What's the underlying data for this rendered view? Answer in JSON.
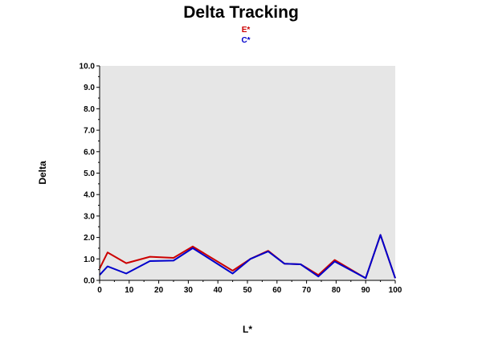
{
  "chart_data": {
    "type": "line",
    "title": "Delta Tracking",
    "xlabel": "L*",
    "ylabel": "Delta",
    "xlim": [
      0,
      100
    ],
    "ylim": [
      0,
      10
    ],
    "x_ticks": [
      "0",
      "10",
      "20",
      "30",
      "40",
      "50",
      "60",
      "70",
      "80",
      "90",
      "100"
    ],
    "y_ticks": [
      "0.0",
      "1.0",
      "2.0",
      "3.0",
      "4.0",
      "5.0",
      "6.0",
      "7.0",
      "8.0",
      "9.0",
      "10.0"
    ],
    "grid": false,
    "plot_background": "#e6e6e6",
    "legend_position": "top-center",
    "series": [
      {
        "name": "E*",
        "color": "#cc0000",
        "x": [
          0,
          2.7,
          9,
          17,
          25,
          31.5,
          45,
          51,
          57,
          62.5,
          68,
          74,
          79.5,
          90,
          95,
          100
        ],
        "y": [
          0.55,
          1.3,
          0.8,
          1.1,
          1.05,
          1.58,
          0.45,
          1.0,
          1.38,
          0.78,
          0.75,
          0.25,
          0.95,
          0.1,
          2.12,
          0.1
        ]
      },
      {
        "name": "C*",
        "color": "#0000cc",
        "x": [
          0,
          2.7,
          9,
          17,
          25,
          31.5,
          45,
          51,
          57,
          62.5,
          68,
          74,
          79.5,
          90,
          95,
          100
        ],
        "y": [
          0.25,
          0.65,
          0.32,
          0.9,
          0.92,
          1.5,
          0.32,
          1.0,
          1.35,
          0.78,
          0.75,
          0.18,
          0.88,
          0.1,
          2.12,
          0.1
        ]
      }
    ]
  }
}
